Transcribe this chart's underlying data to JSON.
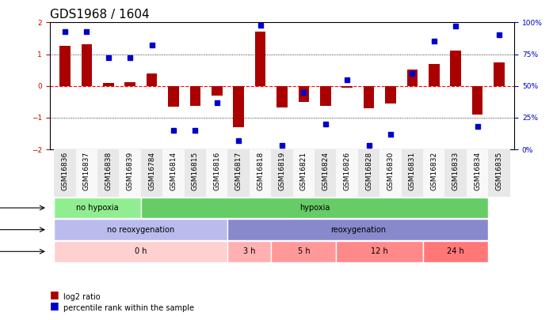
{
  "title": "GDS1968 / 1604",
  "samples": [
    "GSM16836",
    "GSM16837",
    "GSM16838",
    "GSM16839",
    "GSM16784",
    "GSM16814",
    "GSM16815",
    "GSM16816",
    "GSM16817",
    "GSM16818",
    "GSM16819",
    "GSM16821",
    "GSM16824",
    "GSM16826",
    "GSM16828",
    "GSM16830",
    "GSM16831",
    "GSM16832",
    "GSM16833",
    "GSM16834",
    "GSM16835"
  ],
  "log2_ratio": [
    1.25,
    1.3,
    0.08,
    0.12,
    0.38,
    -0.65,
    -0.62,
    -0.3,
    -1.3,
    1.7,
    -0.68,
    -0.5,
    -0.62,
    -0.05,
    -0.7,
    -0.55,
    0.52,
    0.68,
    1.1,
    -0.9,
    0.75
  ],
  "percentile": [
    93,
    93,
    72,
    72,
    82,
    15,
    15,
    37,
    7,
    98,
    3,
    45,
    20,
    55,
    3,
    12,
    60,
    85,
    97,
    18,
    90
  ],
  "stress_groups": [
    {
      "label": "no hypoxia",
      "start": 0,
      "end": 4,
      "color": "#90EE90"
    },
    {
      "label": "hypoxia",
      "start": 4,
      "end": 20,
      "color": "#66CC66"
    }
  ],
  "protocol_groups": [
    {
      "label": "no reoxygenation",
      "start": 0,
      "end": 8,
      "color": "#BBBBEE"
    },
    {
      "label": "reoxygenation",
      "start": 8,
      "end": 20,
      "color": "#8888CC"
    }
  ],
  "time_groups": [
    {
      "label": "0 h",
      "start": 0,
      "end": 8,
      "color": "#FFD0D0"
    },
    {
      "label": "3 h",
      "start": 8,
      "end": 10,
      "color": "#FFB0B0"
    },
    {
      "label": "5 h",
      "start": 10,
      "end": 13,
      "color": "#FF9999"
    },
    {
      "label": "12 h",
      "start": 13,
      "end": 17,
      "color": "#FF8888"
    },
    {
      "label": "24 h",
      "start": 17,
      "end": 20,
      "color": "#FF7777"
    }
  ],
  "bar_color": "#AA0000",
  "dot_color": "#0000CC",
  "bg_color": "#FFFFFF",
  "axis_color_left": "#CC0000",
  "axis_color_right": "#0000CC",
  "ylim": [
    -2,
    2
  ],
  "yticks_left": [
    -2,
    -1,
    0,
    1,
    2
  ],
  "yticks_right": [
    0,
    25,
    50,
    75,
    100
  ],
  "hline_positions": [
    -1,
    0,
    1
  ],
  "title_fontsize": 11,
  "tick_fontsize": 6.5,
  "label_fontsize": 8
}
